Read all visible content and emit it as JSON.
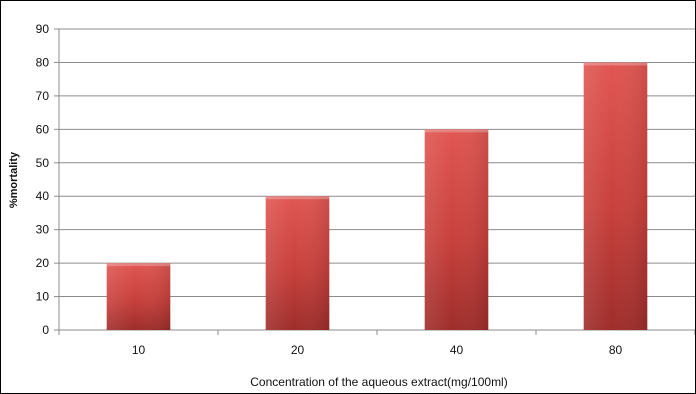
{
  "chart_data": {
    "type": "bar",
    "categories": [
      "10",
      "20",
      "40",
      "80"
    ],
    "series": [
      {
        "values": [
          20,
          40,
          60,
          80
        ]
      }
    ],
    "xlabel": "Concentration of the aqueous extract(mg/100ml)",
    "ylabel": "%mortality",
    "ylim": [
      0,
      90
    ],
    "yticks": [
      0,
      10,
      20,
      30,
      40,
      50,
      60,
      70,
      80,
      90
    ],
    "grid": true,
    "legend": "none",
    "bar_color": "#c8403c"
  }
}
